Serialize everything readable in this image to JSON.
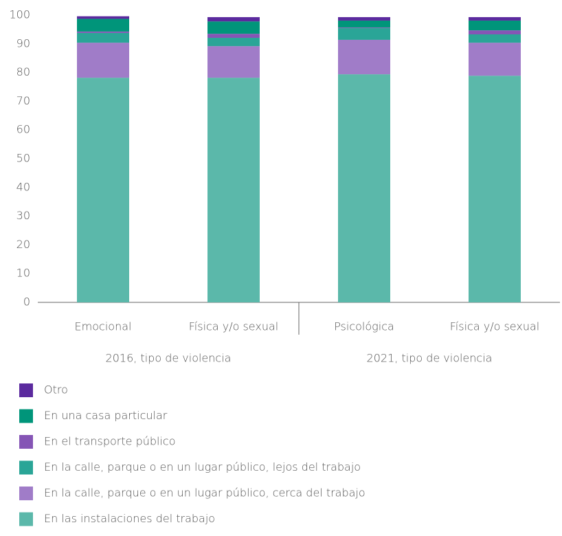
{
  "chart_data": {
    "type": "stacked_bar",
    "categories": [
      "Emocional",
      "Física y/o sexual",
      "Psicológica",
      "Física y/o sexual"
    ],
    "groups": [
      {
        "label": "2016, tipo de violencia",
        "count": 2
      },
      {
        "label": "2021, tipo de violencia",
        "count": 2
      }
    ],
    "series": [
      {
        "name": "En las instalaciones del trabajo",
        "color": "#5bb8aa",
        "values": [
          78.2,
          78.2,
          79.4,
          78.9
        ]
      },
      {
        "name": "En la calle, parque o en un lugar público, cerca del trabajo",
        "color": "#a07cc8",
        "values": [
          12.2,
          11.0,
          12.0,
          11.5
        ]
      },
      {
        "name": "En la calle, parque o en un lugar público, lejos del trabajo",
        "color": "#2aa597",
        "values": [
          3.4,
          2.9,
          4.1,
          2.9
        ]
      },
      {
        "name": "En el transporte público",
        "color": "#8555b5",
        "values": [
          0.5,
          1.4,
          0.2,
          1.4
        ]
      },
      {
        "name": "En una casa particular",
        "color": "#00957a",
        "values": [
          4.4,
          4.3,
          2.4,
          3.4
        ]
      },
      {
        "name": "Otro",
        "color": "#5b2a9e",
        "values": [
          0.9,
          1.5,
          1.2,
          1.2
        ]
      }
    ],
    "ylim": [
      0,
      100
    ],
    "yticks": [
      0,
      10,
      20,
      30,
      40,
      50,
      60,
      70,
      80,
      90,
      100
    ]
  }
}
